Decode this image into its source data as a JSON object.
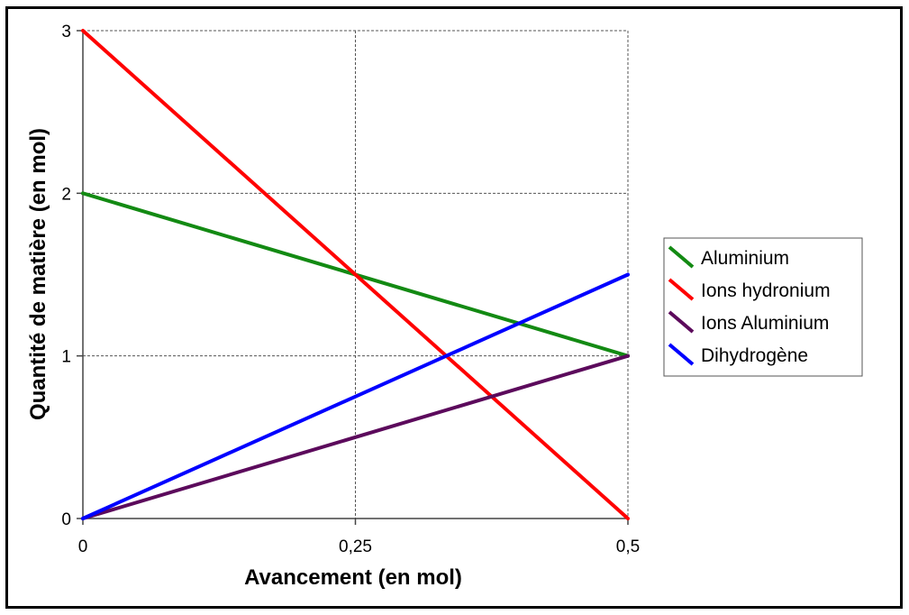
{
  "chart_data": {
    "type": "line",
    "title": "",
    "xlabel": "Avancement (en mol)",
    "ylabel": "Quantité de matière (en mol)",
    "xlim": [
      0,
      0.5
    ],
    "ylim": [
      0,
      3
    ],
    "xticks": [
      0,
      0.25,
      0.5
    ],
    "xtick_labels": [
      "0",
      "0,25",
      "0,5"
    ],
    "yticks": [
      0,
      1,
      2,
      3
    ],
    "ytick_labels": [
      "0",
      "1",
      "2",
      "3"
    ],
    "grid": true,
    "legend_position": "right",
    "series": [
      {
        "name": "Aluminium",
        "color": "#138a13",
        "x": [
          0,
          0.5
        ],
        "y": [
          2,
          1
        ]
      },
      {
        "name": "Ions hydronium",
        "color": "#ff0000",
        "x": [
          0,
          0.5
        ],
        "y": [
          3,
          0
        ]
      },
      {
        "name": "Ions Aluminium",
        "color": "#5c0a5c",
        "x": [
          0,
          0.5
        ],
        "y": [
          0,
          1
        ]
      },
      {
        "name": "Dihydrogène",
        "color": "#0000ff",
        "x": [
          0,
          0.5
        ],
        "y": [
          0,
          1.5
        ]
      }
    ]
  }
}
